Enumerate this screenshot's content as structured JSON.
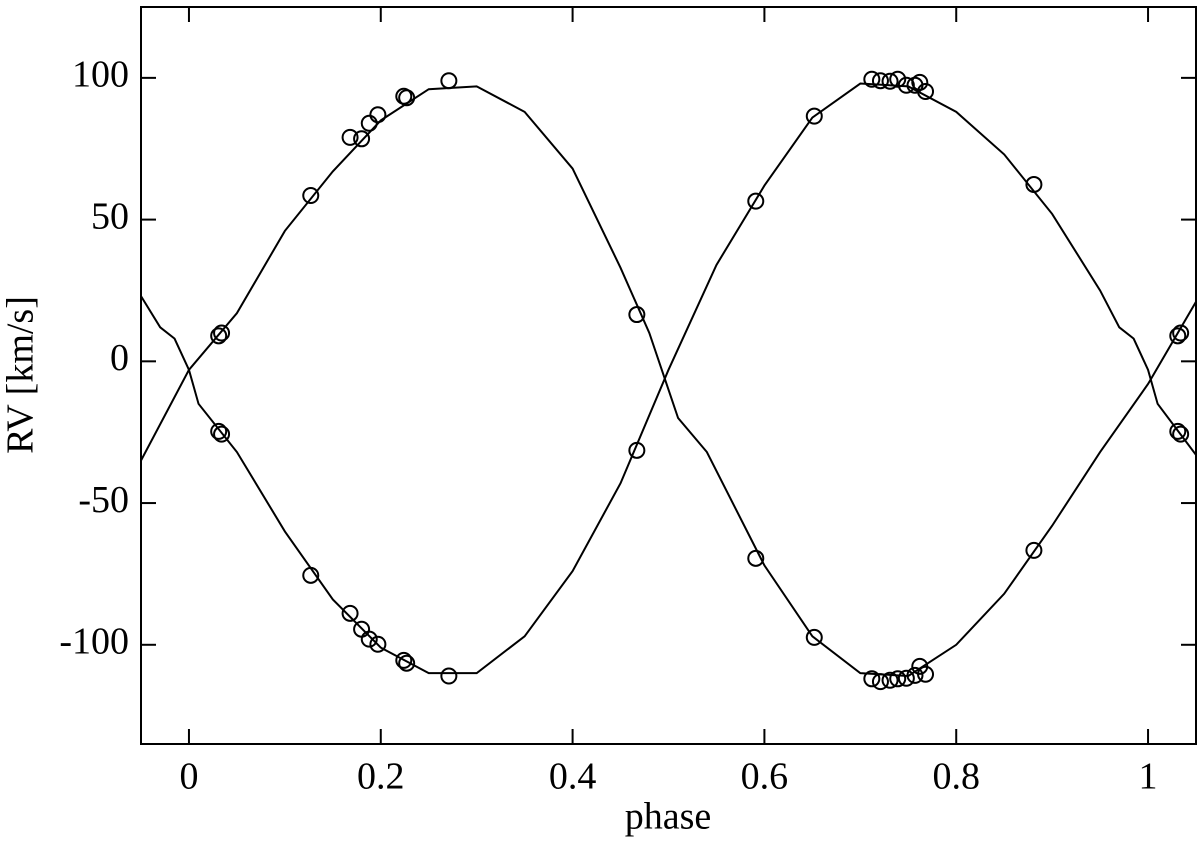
{
  "chart_data": {
    "type": "scatter",
    "xlabel": "phase",
    "ylabel": "RV [km/s]",
    "xlim": [
      -0.05,
      1.05
    ],
    "ylim": [
      -135,
      125
    ],
    "xticks": [
      0,
      0.2,
      0.4,
      0.6,
      0.8,
      1
    ],
    "yticks": [
      -100,
      -50,
      0,
      50,
      100
    ],
    "series": [
      {
        "type": "line",
        "color": "#000000",
        "x": [
          -0.05,
          0,
          0.05,
          0.1,
          0.15,
          0.2,
          0.25,
          0.3,
          0.35,
          0.4,
          0.45,
          0.48,
          0.51,
          0.54,
          0.6,
          0.65,
          0.7,
          0.75,
          0.8,
          0.85,
          0.9,
          0.95,
          1.0,
          1.05
        ],
        "values": [
          -35,
          -3,
          17,
          46,
          67,
          85,
          96,
          97,
          88,
          68,
          33,
          10,
          -20,
          -32,
          -72,
          -97,
          -110,
          -111,
          -100,
          -82,
          -58,
          -32,
          -8,
          21
        ]
      },
      {
        "type": "line",
        "color": "#000000",
        "x": [
          -0.05,
          -0.03,
          -0.015,
          0,
          0.01,
          0.05,
          0.1,
          0.15,
          0.2,
          0.25,
          0.3,
          0.35,
          0.4,
          0.45,
          0.5,
          0.55,
          0.6,
          0.65,
          0.7,
          0.75,
          0.8,
          0.85,
          0.9,
          0.95,
          0.97,
          0.985,
          1.0,
          1.01,
          1.05
        ],
        "values": [
          23,
          12,
          8,
          -3,
          -15,
          -32,
          -60,
          -84,
          -101,
          -110,
          -110,
          -97,
          -74,
          -43,
          -3,
          34,
          62,
          86,
          98,
          97,
          88,
          73,
          52,
          25,
          12,
          8,
          -3,
          -15,
          -33
        ]
      },
      {
        "type": "scatter",
        "color": "#000000",
        "x": [
          0.031,
          0.034,
          0.127,
          0.168,
          0.18,
          0.188,
          0.197,
          0.224,
          0.227,
          0.271,
          0.467,
          0.591,
          0.652,
          0.712,
          0.721,
          0.731,
          0.739,
          0.748,
          0.757,
          0.762,
          0.768,
          0.881,
          1.031,
          1.034
        ],
        "values": [
          9,
          10,
          58.5,
          79,
          78.5,
          84,
          87,
          93.5,
          93,
          99,
          16.5,
          56.5,
          86.5,
          99.5,
          99,
          98.8,
          99.5,
          97.4,
          97.4,
          98.4,
          95.2,
          62.4,
          9,
          10
        ]
      },
      {
        "type": "scatter",
        "color": "#000000",
        "x": [
          0.031,
          0.034,
          0.127,
          0.168,
          0.18,
          0.188,
          0.197,
          0.224,
          0.227,
          0.271,
          0.467,
          0.591,
          0.652,
          0.712,
          0.721,
          0.731,
          0.739,
          0.748,
          0.757,
          0.762,
          0.768,
          0.881,
          1.031,
          1.034
        ],
        "values": [
          -24.7,
          -25.7,
          -75.5,
          -88.9,
          -94.5,
          -98,
          -99.8,
          -105.5,
          -106.5,
          -111,
          -31.4,
          -69.5,
          -97.4,
          -112,
          -113,
          -112.5,
          -112,
          -111.8,
          -110.8,
          -107.6,
          -110.4,
          -66.7,
          -24.7,
          -25.7
        ]
      }
    ]
  }
}
